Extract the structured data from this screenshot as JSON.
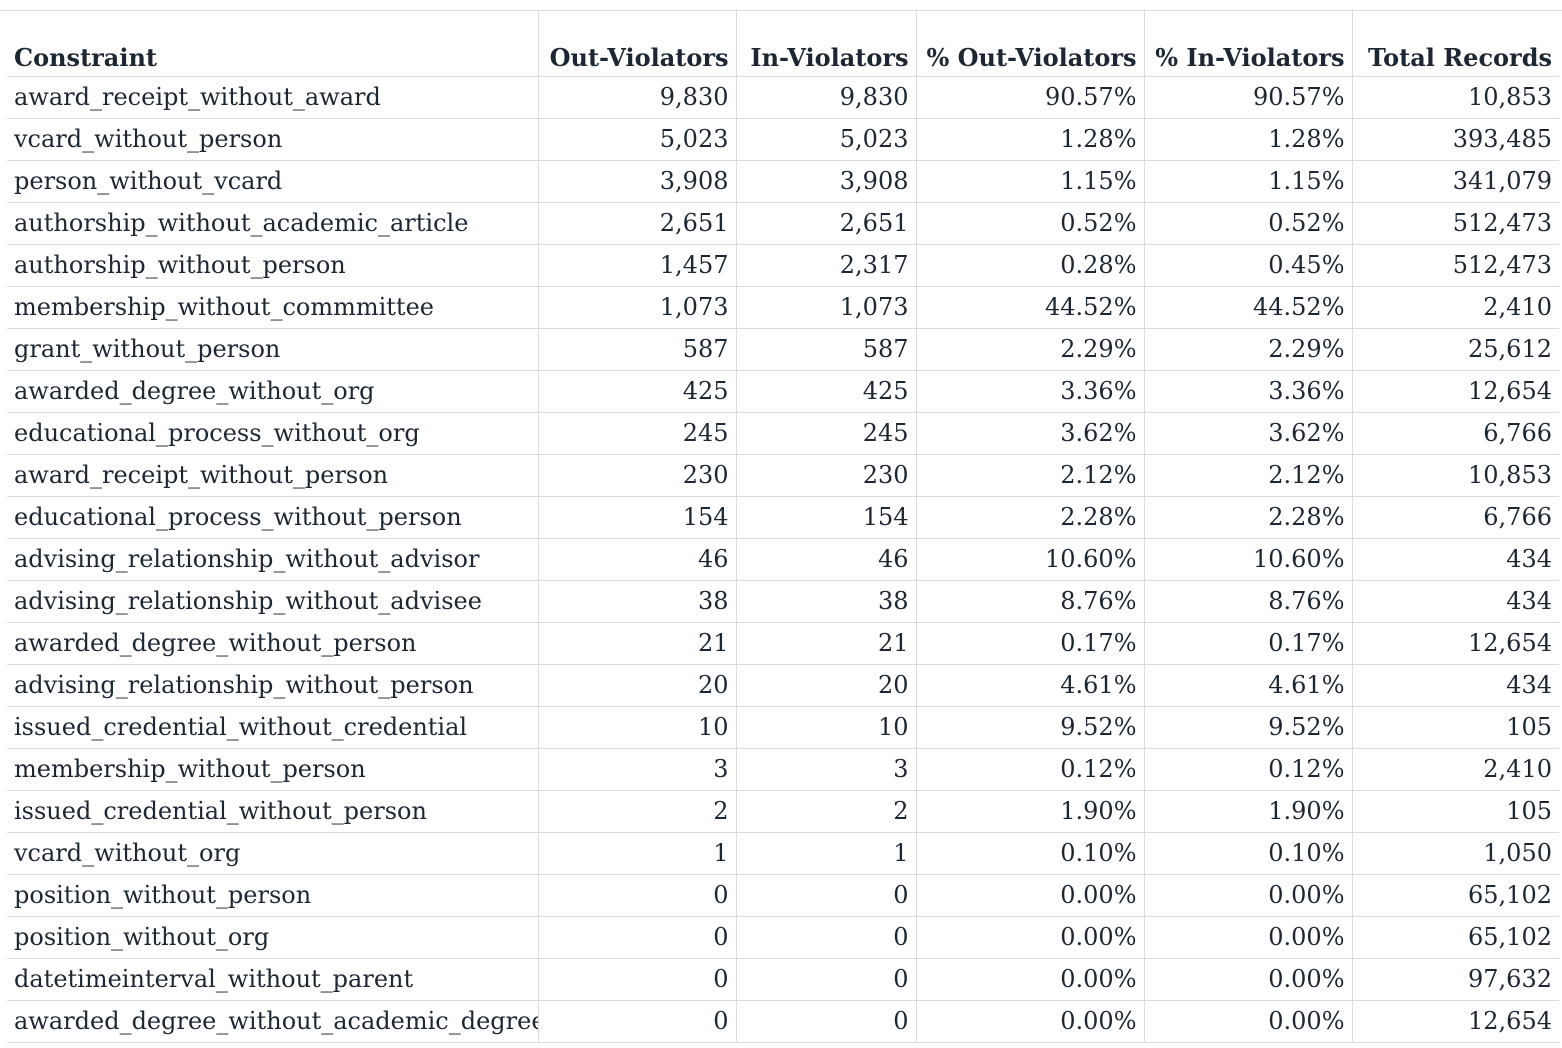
{
  "table": {
    "headers": [
      "Constraint",
      "Out-Violators",
      "In-Violators",
      "% Out-Violators",
      "% In-Violators",
      "Total Records"
    ],
    "rows": [
      [
        "award_receipt_without_award",
        "9,830",
        "9,830",
        "90.57%",
        "90.57%",
        "10,853"
      ],
      [
        "vcard_without_person",
        "5,023",
        "5,023",
        "1.28%",
        "1.28%",
        "393,485"
      ],
      [
        "person_without_vcard",
        "3,908",
        "3,908",
        "1.15%",
        "1.15%",
        "341,079"
      ],
      [
        "authorship_without_academic_article",
        "2,651",
        "2,651",
        "0.52%",
        "0.52%",
        "512,473"
      ],
      [
        "authorship_without_person",
        "1,457",
        "2,317",
        "0.28%",
        "0.45%",
        "512,473"
      ],
      [
        "membership_without_commmittee",
        "1,073",
        "1,073",
        "44.52%",
        "44.52%",
        "2,410"
      ],
      [
        "grant_without_person",
        "587",
        "587",
        "2.29%",
        "2.29%",
        "25,612"
      ],
      [
        "awarded_degree_without_org",
        "425",
        "425",
        "3.36%",
        "3.36%",
        "12,654"
      ],
      [
        "educational_process_without_org",
        "245",
        "245",
        "3.62%",
        "3.62%",
        "6,766"
      ],
      [
        "award_receipt_without_person",
        "230",
        "230",
        "2.12%",
        "2.12%",
        "10,853"
      ],
      [
        "educational_process_without_person",
        "154",
        "154",
        "2.28%",
        "2.28%",
        "6,766"
      ],
      [
        "advising_relationship_without_advisor",
        "46",
        "46",
        "10.60%",
        "10.60%",
        "434"
      ],
      [
        "advising_relationship_without_advisee",
        "38",
        "38",
        "8.76%",
        "8.76%",
        "434"
      ],
      [
        "awarded_degree_without_person",
        "21",
        "21",
        "0.17%",
        "0.17%",
        "12,654"
      ],
      [
        "advising_relationship_without_person",
        "20",
        "20",
        "4.61%",
        "4.61%",
        "434"
      ],
      [
        "issued_credential_without_credential",
        "10",
        "10",
        "9.52%",
        "9.52%",
        "105"
      ],
      [
        "membership_without_person",
        "3",
        "3",
        "0.12%",
        "0.12%",
        "2,410"
      ],
      [
        "issued_credential_without_person",
        "2",
        "2",
        "1.90%",
        "1.90%",
        "105"
      ],
      [
        "vcard_without_org",
        "1",
        "1",
        "0.10%",
        "0.10%",
        "1,050"
      ],
      [
        "position_without_person",
        "0",
        "0",
        "0.00%",
        "0.00%",
        "65,102"
      ],
      [
        "position_without_org",
        "0",
        "0",
        "0.00%",
        "0.00%",
        "65,102"
      ],
      [
        "datetimeinterval_without_parent",
        "0",
        "0",
        "0.00%",
        "0.00%",
        "97,632"
      ],
      [
        "awarded_degree_without_academic_degree",
        "0",
        "0",
        "0.00%",
        "0.00%",
        "12,654"
      ]
    ]
  },
  "colors": {
    "text": "#1d2733",
    "gridline": "#dcdcdc",
    "background": "#ffffff"
  }
}
